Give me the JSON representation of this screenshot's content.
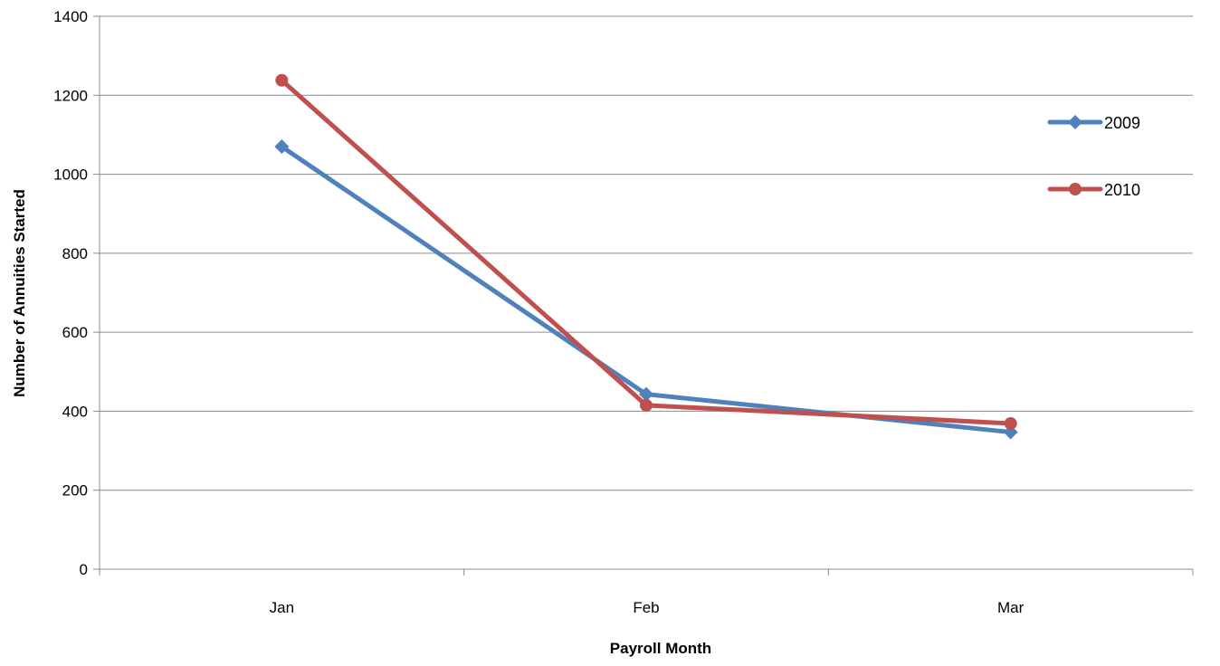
{
  "chart_data": {
    "type": "line",
    "title": "",
    "xlabel": "Payroll Month",
    "ylabel": "Number of Annuities Started",
    "categories": [
      "Jan",
      "Feb",
      "Mar"
    ],
    "ylim": [
      0,
      1400
    ],
    "yticks": [
      0,
      200,
      400,
      600,
      800,
      1000,
      1200,
      1400
    ],
    "grid": true,
    "legend_position": "right",
    "series": [
      {
        "name": "2009",
        "values": [
          1070,
          443,
          347
        ],
        "color": "#4F81BD",
        "marker": "diamond"
      },
      {
        "name": "2010",
        "values": [
          1238,
          415,
          369
        ],
        "color": "#C0504D",
        "marker": "circle"
      }
    ]
  }
}
